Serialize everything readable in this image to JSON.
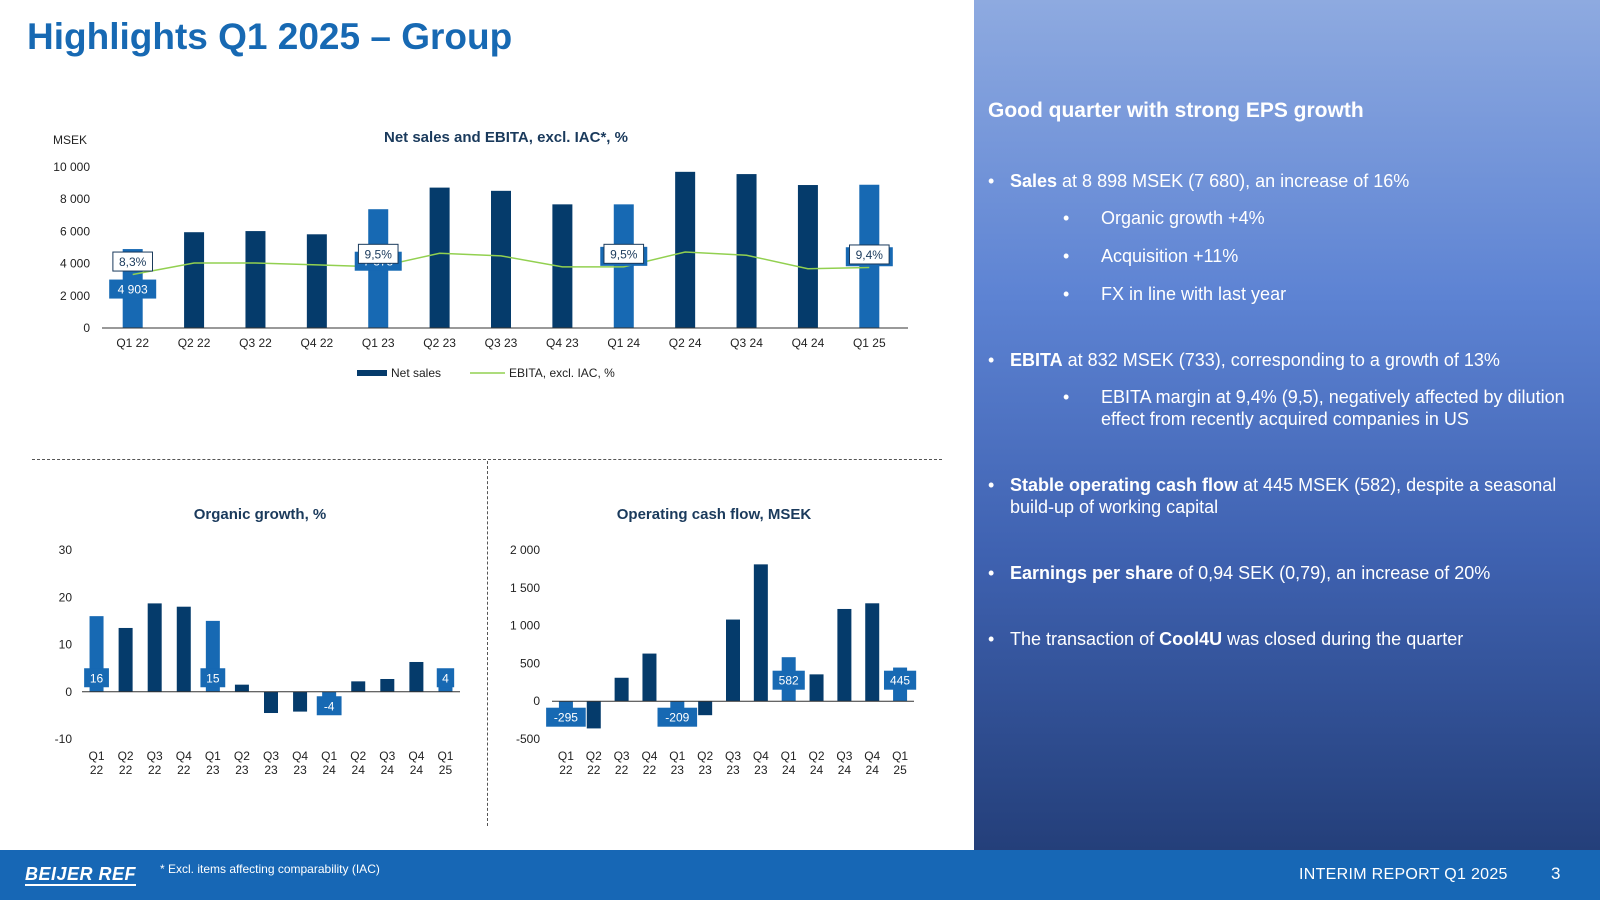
{
  "page": {
    "title": "Highlights Q1 2025 – Group"
  },
  "colors": {
    "dark_bar": "#053b6b",
    "highlight_bar": "#1769b3",
    "ebita_line": "#92d050",
    "panel_text": "#ffffff"
  },
  "panel": {
    "heading": "Good quarter with strong EPS growth",
    "bullets": [
      {
        "level": 1,
        "bold": "Sales",
        "text": " at 8 898 MSEK (7 680), an increase of 16%"
      },
      {
        "level": 2,
        "bold": "",
        "text": "Organic growth +4%"
      },
      {
        "level": 2,
        "bold": "",
        "text": "Acquisition +11%"
      },
      {
        "level": 2,
        "bold": "",
        "text": "FX in line with last year"
      },
      {
        "level": 1,
        "bold": "EBITA",
        "text": " at 832 MSEK (733), corresponding to a growth of 13%"
      },
      {
        "level": 2,
        "bold": "",
        "text": "EBITA margin at 9,4% (9,5), negatively affected by dilution effect from recently acquired companies in US"
      },
      {
        "level": 1,
        "bold": "Stable operating cash flow",
        "text": " at 445 MSEK (582), despite a seasonal build-up of working capital"
      },
      {
        "level": 1,
        "bold": "Earnings per share",
        "text": " of 0,94 SEK (0,79), an increase of 20%"
      },
      {
        "level": 1,
        "before": "The transaction of ",
        "bold": "Cool4U",
        "text": " was closed during the quarter"
      }
    ]
  },
  "footer": {
    "logo": "BEIJER REF",
    "footnote": "* Excl. items affecting comparability (IAC)",
    "report": "INTERIM REPORT Q1 2025",
    "page": "3"
  },
  "chart_data": [
    {
      "id": "net_sales_ebita",
      "type": "bar",
      "title": "Net sales and EBITA, excl. IAC*, %",
      "ylabel": "MSEK",
      "ylim": [
        0,
        10000
      ],
      "yticks": [
        0,
        2000,
        4000,
        6000,
        8000,
        10000
      ],
      "ytick_labels": [
        "0",
        "2 000",
        "4 000",
        "6 000",
        "8 000",
        "10 000"
      ],
      "categories": [
        "Q1 22",
        "Q2 22",
        "Q3 22",
        "Q4 22",
        "Q1 23",
        "Q2 23",
        "Q3 23",
        "Q4 23",
        "Q1 24",
        "Q2 24",
        "Q3 24",
        "Q4 24",
        "Q1 25"
      ],
      "legend": [
        "Net sales",
        "EBITA, excl. IAC, %"
      ],
      "series": [
        {
          "name": "Net sales",
          "values": [
            4903,
            5950,
            6020,
            5820,
            7378,
            8720,
            8520,
            7680,
            7680,
            9700,
            9560,
            8880,
            8898
          ],
          "highlight": [
            0,
            4,
            8,
            12
          ],
          "labels": [
            "4 903",
            "",
            "",
            "",
            "7 378",
            "",
            "",
            "",
            "7 680",
            "",
            "",
            "",
            "8 898"
          ]
        },
        {
          "name": "EBITA, excl. IAC, %",
          "values": [
            8.3,
            10.1,
            10.1,
            9.8,
            9.5,
            11.6,
            11.2,
            9.5,
            9.5,
            11.8,
            11.3,
            9.2,
            9.4
          ],
          "labels": [
            "8,3%",
            "",
            "",
            "",
            "9,5%",
            "",
            "",
            "",
            "9,5%",
            "",
            "",
            "",
            "9,4%"
          ]
        }
      ]
    },
    {
      "id": "organic_growth",
      "type": "bar",
      "title": "Organic growth, %",
      "ylim": [
        -10,
        30
      ],
      "yticks": [
        -10,
        0,
        10,
        20,
        30
      ],
      "ytick_labels": [
        "-10",
        "0",
        "10",
        "20",
        "30"
      ],
      "categories": [
        [
          "Q1",
          "22"
        ],
        [
          "Q2",
          "22"
        ],
        [
          "Q3",
          "22"
        ],
        [
          "Q4",
          "22"
        ],
        [
          "Q1",
          "23"
        ],
        [
          "Q2",
          "23"
        ],
        [
          "Q3",
          "23"
        ],
        [
          "Q4",
          "23"
        ],
        [
          "Q1",
          "24"
        ],
        [
          "Q2",
          "24"
        ],
        [
          "Q3",
          "24"
        ],
        [
          "Q4",
          "24"
        ],
        [
          "Q1",
          "25"
        ]
      ],
      "values": [
        16,
        13.5,
        18.7,
        18,
        15,
        1.5,
        -4.5,
        -4.2,
        -4,
        2.2,
        2.7,
        6.3,
        4
      ],
      "highlight": [
        0,
        4,
        8,
        12
      ],
      "labels": [
        "16",
        "",
        "",
        "",
        "15",
        "",
        "",
        "",
        "-4",
        "",
        "",
        "",
        "4"
      ]
    },
    {
      "id": "operating_cash_flow",
      "type": "bar",
      "title": "Operating cash flow, MSEK",
      "ylim": [
        -500,
        2000
      ],
      "yticks": [
        -500,
        0,
        500,
        1000,
        1500,
        2000
      ],
      "ytick_labels": [
        "-500",
        "0",
        "500",
        "1 000",
        "1 500",
        "2 000"
      ],
      "categories": [
        [
          "Q1",
          "22"
        ],
        [
          "Q2",
          "22"
        ],
        [
          "Q3",
          "22"
        ],
        [
          "Q4",
          "22"
        ],
        [
          "Q1",
          "23"
        ],
        [
          "Q2",
          "23"
        ],
        [
          "Q3",
          "23"
        ],
        [
          "Q4",
          "23"
        ],
        [
          "Q1",
          "24"
        ],
        [
          "Q2",
          "24"
        ],
        [
          "Q3",
          "24"
        ],
        [
          "Q4",
          "24"
        ],
        [
          "Q1",
          "25"
        ]
      ],
      "values": [
        -295,
        -360,
        310,
        630,
        -209,
        -185,
        1080,
        1810,
        582,
        355,
        1220,
        1295,
        445
      ],
      "highlight": [
        0,
        4,
        8,
        12
      ],
      "labels": [
        "-295",
        "",
        "",
        "",
        "-209",
        "",
        "",
        "",
        "582",
        "",
        "",
        "",
        "445"
      ]
    }
  ]
}
